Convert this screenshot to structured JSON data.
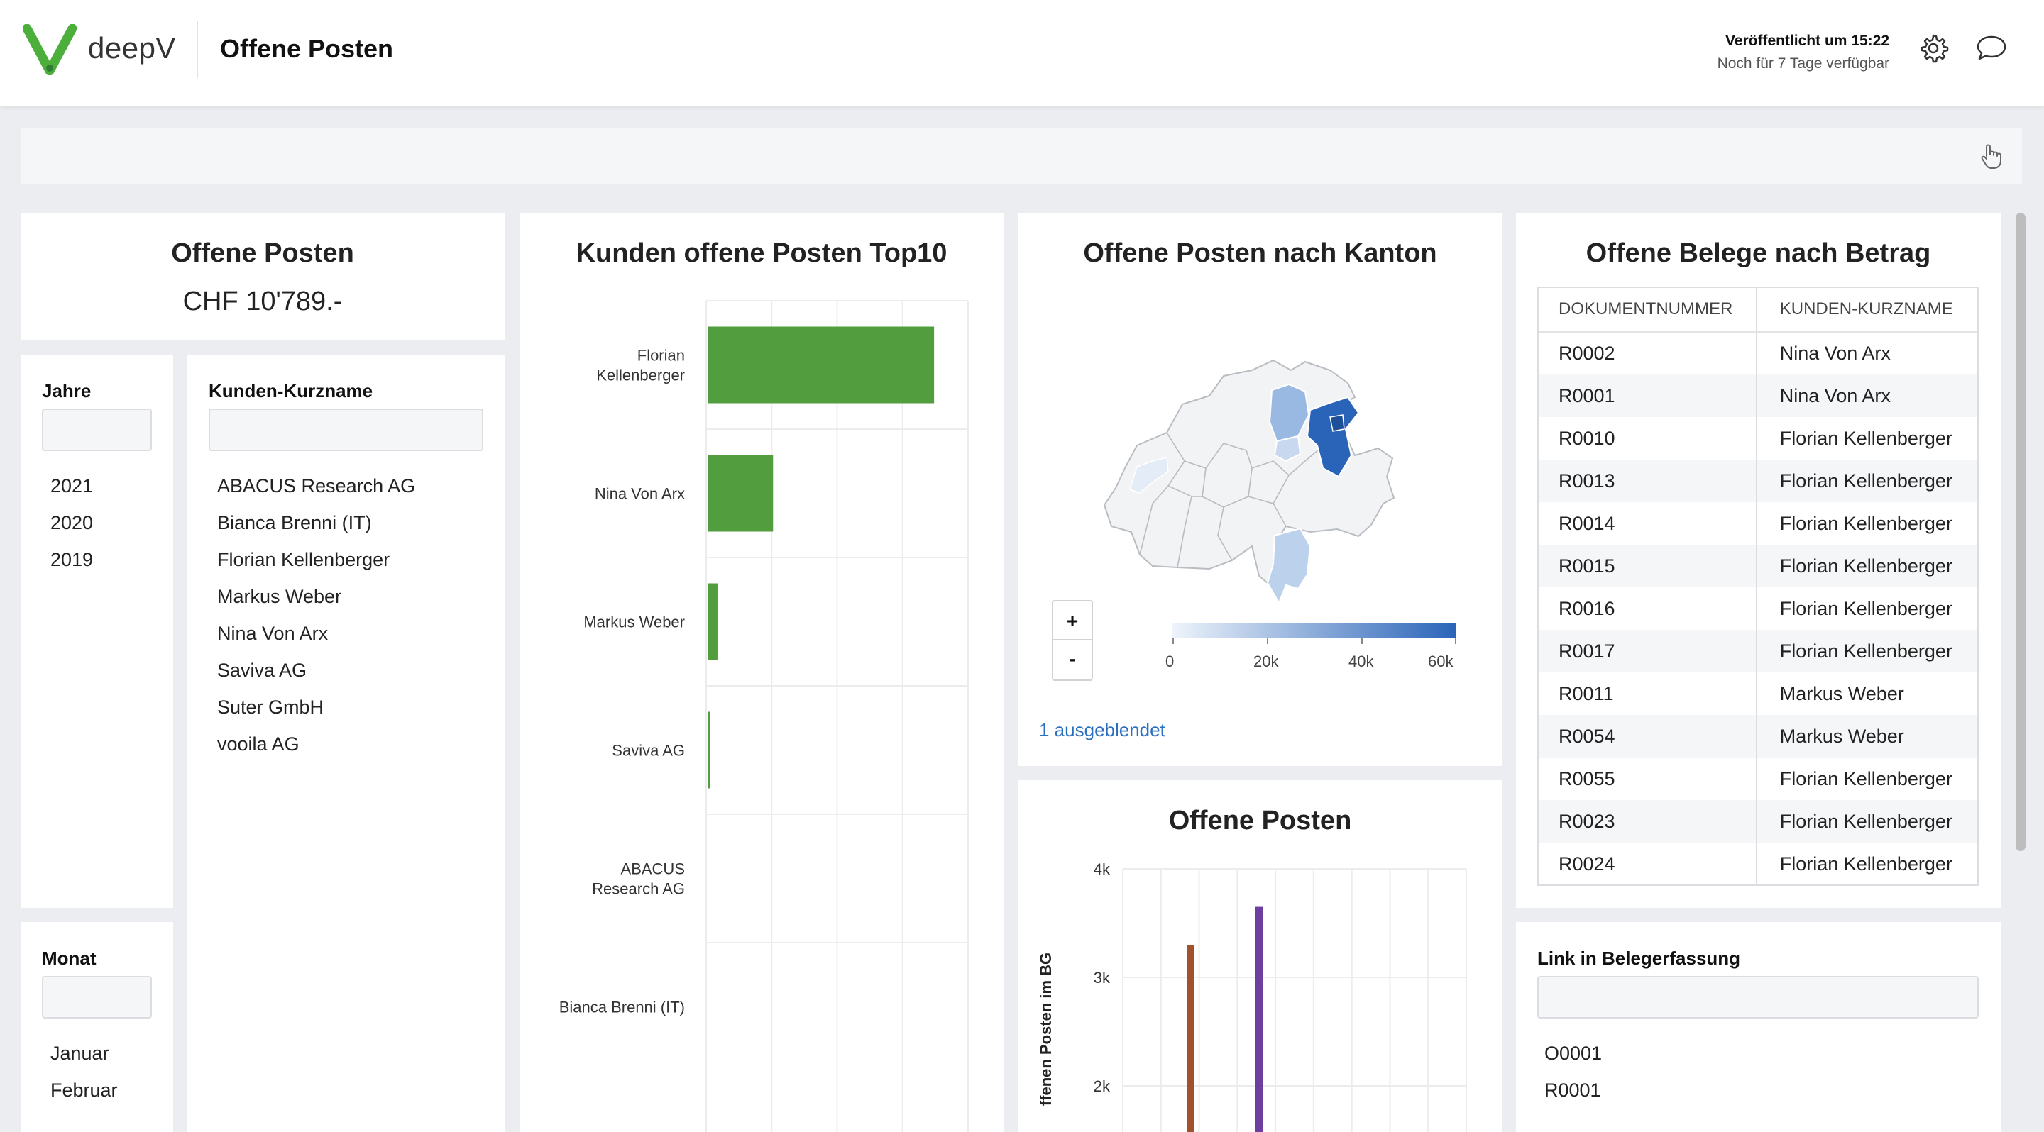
{
  "header": {
    "brand": "deepV",
    "title": "Offene Posten",
    "published": "Veröffentlicht um 15:22",
    "availability": "Noch für 7 Tage verfügbar",
    "icons": [
      "settings-gear-icon",
      "chat-bubble-icon"
    ],
    "brand_color": "#4caf3c"
  },
  "kpi": {
    "title": "Offene Posten",
    "value": "CHF 10'789.-"
  },
  "filters": {
    "jahre": {
      "label": "Jahre",
      "items": [
        "2021",
        "2020",
        "2019"
      ]
    },
    "kunden": {
      "label": "Kunden-Kurzname",
      "items": [
        "ABACUS Research AG",
        "Bianca Brenni (IT)",
        "Florian Kellenberger",
        "Markus Weber",
        "Nina Von Arx",
        "Saviva AG",
        "Suter GmbH",
        "vooila AG"
      ]
    },
    "monat": {
      "label": "Monat",
      "items": [
        "Januar",
        "Februar"
      ]
    },
    "link": {
      "label": "Link in Belegerfassung",
      "items": [
        "O0001",
        "R0001"
      ]
    }
  },
  "top10": {
    "title": "Kunden offene Posten Top10",
    "labels": [
      [
        "Florian",
        "Kellenberger"
      ],
      [
        "Nina Von Arx"
      ],
      [
        "Markus Weber"
      ],
      [
        "Saviva AG"
      ],
      [
        "ABACUS",
        "Research AG"
      ],
      [
        "Bianca Brenni (IT)"
      ]
    ]
  },
  "map": {
    "title": "Offene Posten nach Kanton",
    "zoom_in": "+",
    "zoom_out": "-",
    "legend_ticks": [
      "0",
      "20k",
      "40k",
      "60k"
    ],
    "hidden_note": "1 ausgeblendet",
    "scale_colors": [
      "#eef4fb",
      "#2a64b8"
    ]
  },
  "op_chart": {
    "title": "Offene Posten",
    "ylabel": "ffenen Posten im BG",
    "yticks": [
      "4k",
      "3k",
      "2k"
    ]
  },
  "belege": {
    "title": "Offene Belege nach Betrag",
    "col1": "DOKUMENTNUMMER",
    "col2": "KUNDEN-KURZNAME",
    "rows": [
      [
        "R0002",
        "Nina Von Arx"
      ],
      [
        "R0001",
        "Nina Von Arx"
      ],
      [
        "R0010",
        "Florian Kellenberger"
      ],
      [
        "R0013",
        "Florian Kellenberger"
      ],
      [
        "R0014",
        "Florian Kellenberger"
      ],
      [
        "R0015",
        "Florian Kellenberger"
      ],
      [
        "R0016",
        "Florian Kellenberger"
      ],
      [
        "R0017",
        "Florian Kellenberger"
      ],
      [
        "R0011",
        "Markus Weber"
      ],
      [
        "R0054",
        "Markus Weber"
      ],
      [
        "R0055",
        "Florian Kellenberger"
      ],
      [
        "R0023",
        "Florian Kellenberger"
      ],
      [
        "R0024",
        "Florian Kellenberger"
      ]
    ]
  },
  "chart_data": [
    {
      "type": "bar",
      "orientation": "horizontal",
      "title": "Kunden offene Posten Top10",
      "categories": [
        "Florian Kellenberger",
        "Nina Von Arx",
        "Markus Weber",
        "Saviva AG",
        "ABACUS Research AG",
        "Bianca Brenni (IT)"
      ],
      "values": [
        6400,
        1850,
        280,
        60,
        0,
        0
      ],
      "color": "#529e3f",
      "grid": true
    },
    {
      "type": "bar",
      "title": "Offene Posten",
      "ylabel": "ffenen Posten im BG",
      "yticks": [
        "4k",
        "3k",
        "2k"
      ],
      "series": [
        {
          "values": [
            3300
          ],
          "color": "#a0522d"
        },
        {
          "values": [
            3650
          ],
          "color": "#6f3fa0"
        }
      ],
      "grid": true
    }
  ]
}
